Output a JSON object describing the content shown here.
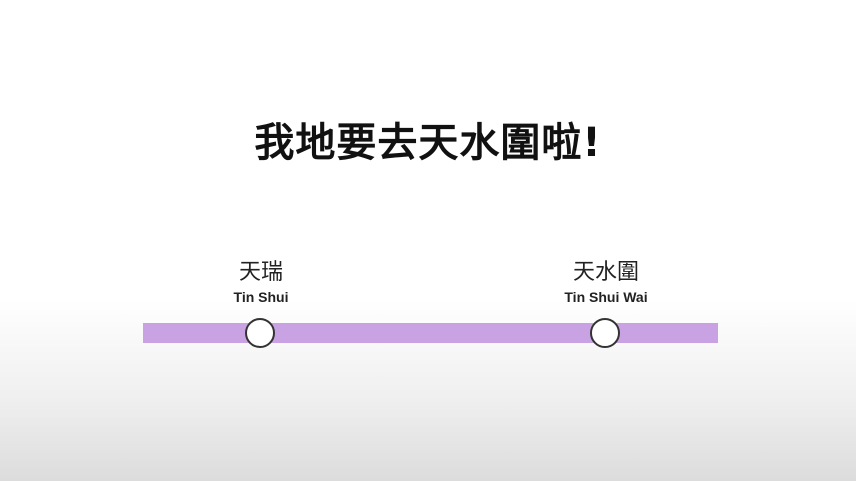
{
  "title": "我地要去天水圍啦!",
  "route": {
    "line_color": "#c8a2e3",
    "stations": [
      {
        "name_zh": "天瑞",
        "name_en": "Tin Shui"
      },
      {
        "name_zh": "天水圍",
        "name_en": "Tin Shui Wai"
      }
    ]
  }
}
